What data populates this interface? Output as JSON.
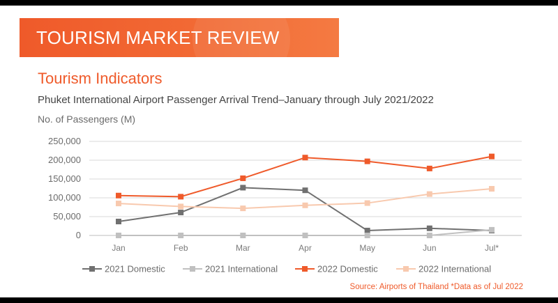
{
  "header": {
    "banner_title": "TOURISM MARKET REVIEW",
    "section_title": "Tourism Indicators",
    "subtitle": "Phuket International Airport Passenger Arrival Trend–January through July 2021/2022",
    "units_label": "No. of Passengers (M)"
  },
  "footer": {
    "source": "Source: Airports of Thailand *Data as of Jul 2022"
  },
  "colors": {
    "accent": "#ef5a2a",
    "domestic_2021": "#707070",
    "international_2021": "#c0c0c0",
    "domestic_2022": "#ef5a2a",
    "international_2022": "#f8c9ae"
  },
  "chart_data": {
    "type": "line",
    "title": "Phuket International Airport Passenger Arrival Trend–January through July 2021/2022",
    "ylabel": "No. of Passengers (M)",
    "xlabel": "",
    "categories": [
      "Jan",
      "Feb",
      "Mar",
      "Apr",
      "May",
      "Jun",
      "Jul*"
    ],
    "ylim": [
      0,
      250000
    ],
    "yticks": [
      0,
      50000,
      100000,
      150000,
      200000,
      250000
    ],
    "ytick_labels": [
      "0",
      "50,000",
      "100,000",
      "150,000",
      "200,000",
      "250,000"
    ],
    "grid": true,
    "legend_position": "bottom",
    "series": [
      {
        "name": "2021 Domestic",
        "color": "#707070",
        "values": [
          37000,
          61000,
          127000,
          120000,
          13000,
          19000,
          13000
        ]
      },
      {
        "name": "2021 International",
        "color": "#c0c0c0",
        "values": [
          0,
          0,
          0,
          0,
          0,
          0,
          15000
        ]
      },
      {
        "name": "2022 Domestic",
        "color": "#ef5a2a",
        "values": [
          106000,
          103000,
          152000,
          207000,
          197000,
          178000,
          210000
        ]
      },
      {
        "name": "2022 International",
        "color": "#f8c9ae",
        "values": [
          85000,
          77000,
          72000,
          80000,
          86000,
          110000,
          124000
        ]
      }
    ]
  }
}
